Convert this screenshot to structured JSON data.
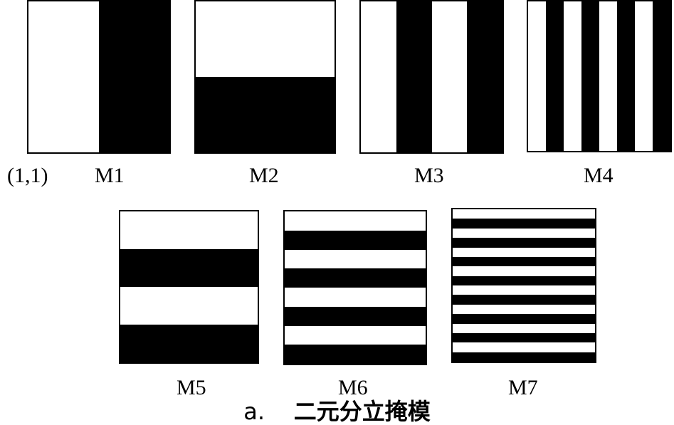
{
  "origin_label": "(1,1)",
  "caption": {
    "prefix": "a.",
    "text": "二元分立掩模"
  },
  "masks": [
    {
      "label": "M1",
      "orientation": "vertical",
      "divisions": 2
    },
    {
      "label": "M2",
      "orientation": "horizontal",
      "divisions": 2
    },
    {
      "label": "M3",
      "orientation": "vertical",
      "divisions": 4
    },
    {
      "label": "M4",
      "orientation": "vertical",
      "divisions": 8
    },
    {
      "label": "M5",
      "orientation": "horizontal",
      "divisions": 4
    },
    {
      "label": "M6",
      "orientation": "horizontal",
      "divisions": 8
    },
    {
      "label": "M7",
      "orientation": "horizontal",
      "divisions": 16
    }
  ],
  "colors": {
    "stripe": "#000000",
    "background": "#ffffff"
  }
}
